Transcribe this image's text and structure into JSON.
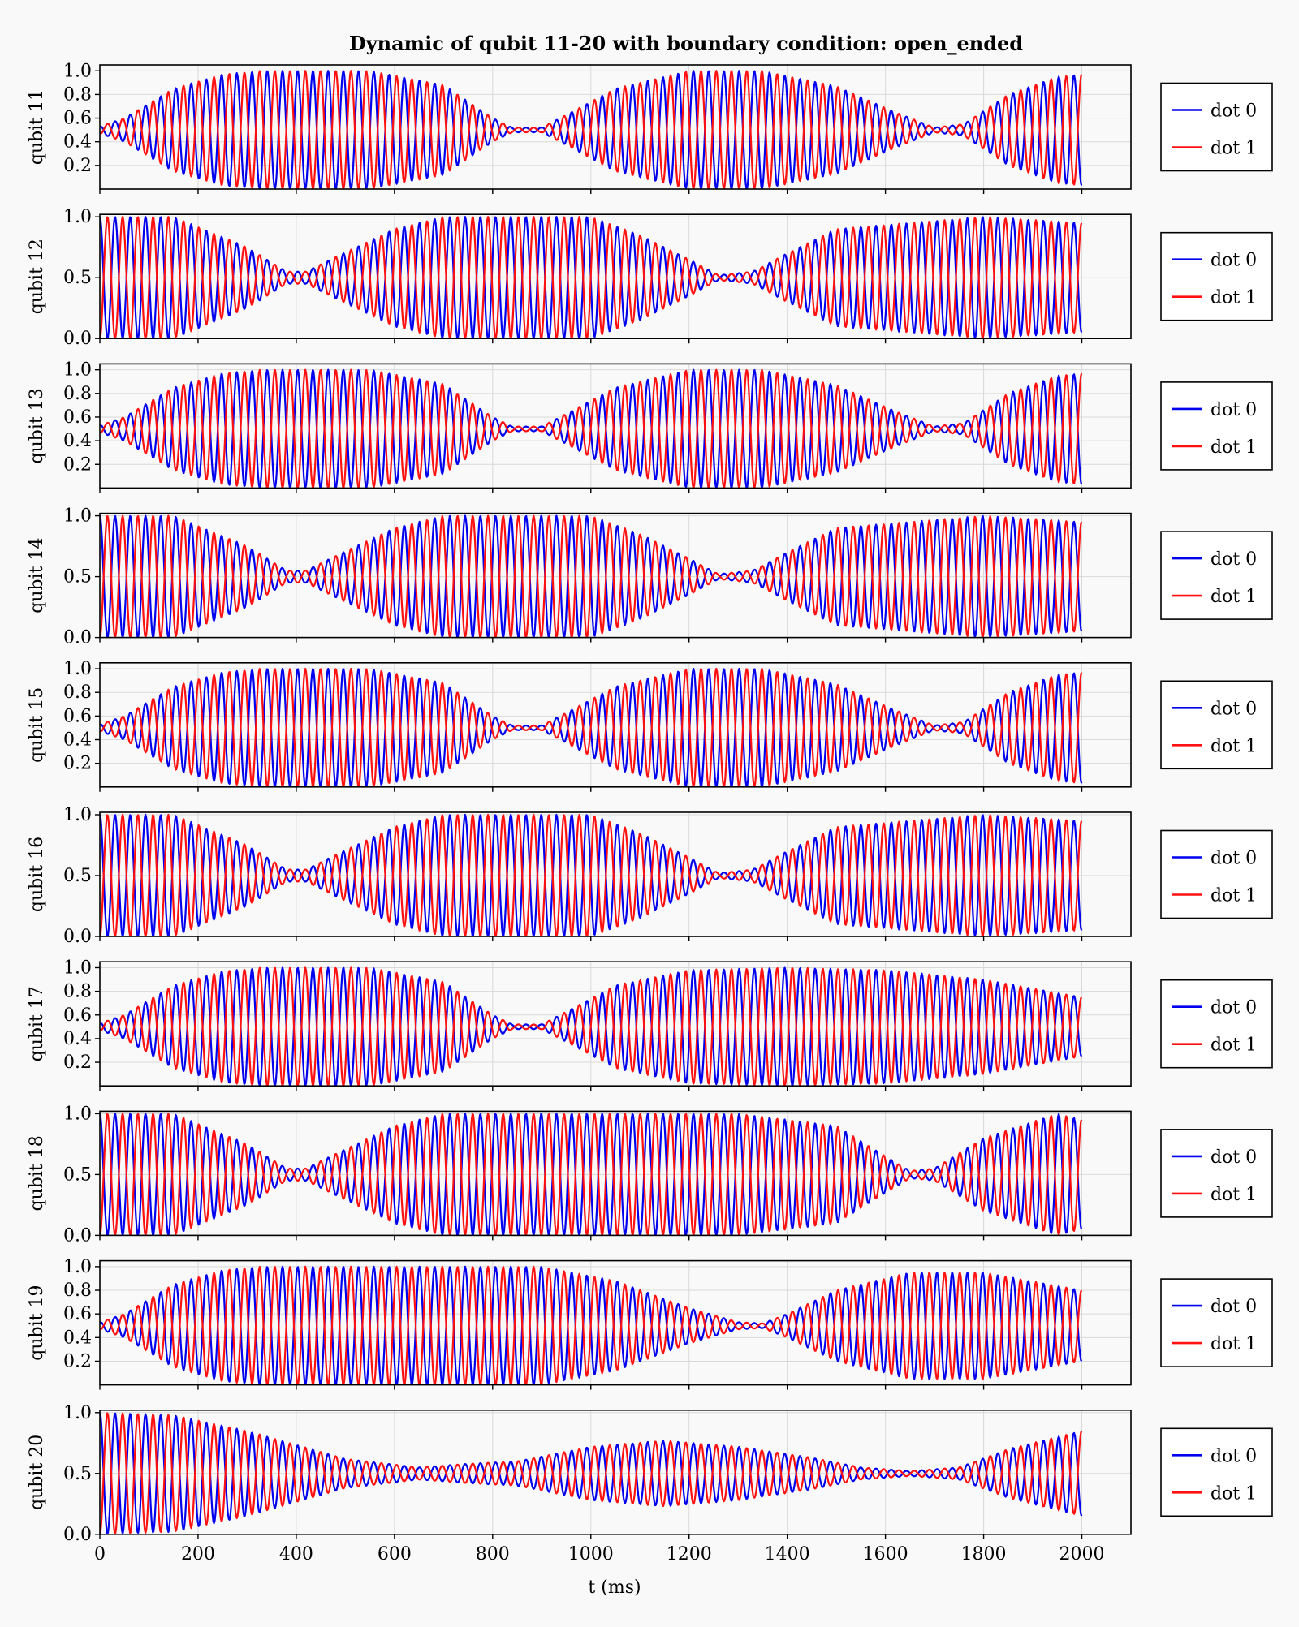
{
  "chart_data": {
    "type": "line",
    "title": "Dynamic of qubit 11-20 with boundary condition: open_ended",
    "xlabel": "t (ms)",
    "xlim": [
      0,
      2100
    ],
    "xticks": [
      0,
      200,
      400,
      600,
      800,
      1000,
      1200,
      1400,
      1600,
      1800,
      2000
    ],
    "grid": true,
    "legend_placement": "right, outside each panel",
    "oscillation_period_ms": 31,
    "series_styles": [
      {
        "name": "dot 0",
        "color": "#0000ee"
      },
      {
        "name": "dot 1",
        "color": "#ff1111"
      }
    ],
    "panels": [
      {
        "ylabel": "qubit 11",
        "ylim": [
          0.0,
          1.05
        ],
        "yticks": [
          "0.2",
          "0.4",
          "0.6",
          "0.8",
          "1.0"
        ],
        "legend": [
          "dot 0",
          "dot 1"
        ],
        "envelope": {
          "t": [
            0,
            50,
            150,
            250,
            330,
            550,
            700,
            800,
            840,
            900,
            960,
            1050,
            1200,
            1350,
            1500,
            1620,
            1700,
            1760,
            1850,
            1950,
            2000
          ],
          "amp": [
            0.03,
            0.1,
            0.35,
            0.47,
            0.5,
            0.5,
            0.38,
            0.1,
            0.02,
            0.02,
            0.15,
            0.35,
            0.5,
            0.5,
            0.37,
            0.15,
            0.02,
            0.05,
            0.3,
            0.45,
            0.47
          ]
        }
      },
      {
        "ylabel": "qubit 12",
        "ylim": [
          0.0,
          1.02
        ],
        "yticks": [
          "0.0",
          "0.5",
          "1.0"
        ],
        "legend": [
          "dot 0",
          "dot 1"
        ],
        "envelope": {
          "t": [
            0,
            150,
            300,
            380,
            420,
            470,
            600,
            700,
            1000,
            1100,
            1200,
            1260,
            1330,
            1400,
            1500,
            1800,
            2000
          ],
          "amp": [
            0.5,
            0.5,
            0.25,
            0.05,
            0.05,
            0.15,
            0.4,
            0.5,
            0.5,
            0.35,
            0.15,
            0.02,
            0.05,
            0.2,
            0.4,
            0.5,
            0.45
          ]
        }
      },
      {
        "ylabel": "qubit 13",
        "ylim": [
          0.0,
          1.05
        ],
        "yticks": [
          "0.2",
          "0.4",
          "0.6",
          "0.8",
          "1.0"
        ],
        "legend": [
          "dot 0",
          "dot 1"
        ],
        "envelope": {
          "t": [
            0,
            50,
            150,
            250,
            330,
            550,
            700,
            800,
            840,
            900,
            960,
            1050,
            1200,
            1350,
            1500,
            1620,
            1700,
            1760,
            1850,
            1950,
            2000
          ],
          "amp": [
            0.03,
            0.1,
            0.35,
            0.47,
            0.5,
            0.5,
            0.38,
            0.1,
            0.02,
            0.02,
            0.15,
            0.35,
            0.5,
            0.5,
            0.37,
            0.15,
            0.02,
            0.05,
            0.3,
            0.45,
            0.47
          ]
        }
      },
      {
        "ylabel": "qubit 14",
        "ylim": [
          0.0,
          1.02
        ],
        "yticks": [
          "0.0",
          "0.5",
          "1.0"
        ],
        "legend": [
          "dot 0",
          "dot 1"
        ],
        "envelope": {
          "t": [
            0,
            150,
            300,
            380,
            420,
            470,
            600,
            700,
            1000,
            1100,
            1200,
            1260,
            1330,
            1400,
            1500,
            1800,
            2000
          ],
          "amp": [
            0.5,
            0.5,
            0.25,
            0.05,
            0.05,
            0.15,
            0.4,
            0.5,
            0.5,
            0.35,
            0.15,
            0.02,
            0.05,
            0.2,
            0.4,
            0.5,
            0.45
          ]
        }
      },
      {
        "ylabel": "qubit 15",
        "ylim": [
          0.0,
          1.05
        ],
        "yticks": [
          "0.2",
          "0.4",
          "0.6",
          "0.8",
          "1.0"
        ],
        "legend": [
          "dot 0",
          "dot 1"
        ],
        "envelope": {
          "t": [
            0,
            50,
            150,
            250,
            330,
            550,
            700,
            800,
            840,
            900,
            960,
            1050,
            1200,
            1350,
            1500,
            1620,
            1700,
            1760,
            1850,
            1950,
            2000
          ],
          "amp": [
            0.03,
            0.1,
            0.35,
            0.47,
            0.5,
            0.5,
            0.38,
            0.1,
            0.02,
            0.02,
            0.15,
            0.35,
            0.5,
            0.5,
            0.37,
            0.15,
            0.02,
            0.05,
            0.3,
            0.45,
            0.47
          ]
        }
      },
      {
        "ylabel": "qubit 16",
        "ylim": [
          0.0,
          1.02
        ],
        "yticks": [
          "0.0",
          "0.5",
          "1.0"
        ],
        "legend": [
          "dot 0",
          "dot 1"
        ],
        "envelope": {
          "t": [
            0,
            150,
            300,
            380,
            420,
            470,
            600,
            700,
            1000,
            1100,
            1200,
            1260,
            1330,
            1400,
            1500,
            1800,
            2000
          ],
          "amp": [
            0.5,
            0.5,
            0.25,
            0.05,
            0.05,
            0.15,
            0.4,
            0.5,
            0.5,
            0.35,
            0.15,
            0.02,
            0.05,
            0.2,
            0.4,
            0.5,
            0.45
          ]
        }
      },
      {
        "ylabel": "qubit 17",
        "ylim": [
          0.0,
          1.05
        ],
        "yticks": [
          "0.2",
          "0.4",
          "0.6",
          "0.8",
          "1.0"
        ],
        "legend": [
          "dot 0",
          "dot 1"
        ],
        "envelope": {
          "t": [
            0,
            50,
            150,
            250,
            330,
            550,
            700,
            800,
            840,
            900,
            960,
            1050,
            1200,
            1400,
            1600,
            1800,
            2000
          ],
          "amp": [
            0.03,
            0.1,
            0.35,
            0.47,
            0.5,
            0.5,
            0.38,
            0.1,
            0.02,
            0.02,
            0.15,
            0.35,
            0.48,
            0.5,
            0.48,
            0.4,
            0.25
          ]
        }
      },
      {
        "ylabel": "qubit 18",
        "ylim": [
          0.0,
          1.02
        ],
        "yticks": [
          "0.0",
          "0.5",
          "1.0"
        ],
        "legend": [
          "dot 0",
          "dot 1"
        ],
        "envelope": {
          "t": [
            0,
            150,
            300,
            380,
            420,
            470,
            600,
            700,
            1000,
            1300,
            1500,
            1600,
            1650,
            1700,
            1800,
            1950,
            2000
          ],
          "amp": [
            0.5,
            0.5,
            0.25,
            0.05,
            0.05,
            0.15,
            0.4,
            0.5,
            0.5,
            0.5,
            0.4,
            0.15,
            0.03,
            0.05,
            0.3,
            0.5,
            0.45
          ]
        }
      },
      {
        "ylabel": "qubit 19",
        "ylim": [
          0.0,
          1.05
        ],
        "yticks": [
          "0.2",
          "0.4",
          "0.6",
          "0.8",
          "1.0"
        ],
        "legend": [
          "dot 0",
          "dot 1"
        ],
        "envelope": {
          "t": [
            0,
            50,
            150,
            250,
            330,
            600,
            900,
            1050,
            1200,
            1300,
            1350,
            1400,
            1500,
            1650,
            1800,
            2000
          ],
          "amp": [
            0.03,
            0.1,
            0.35,
            0.47,
            0.5,
            0.5,
            0.5,
            0.38,
            0.15,
            0.03,
            0.02,
            0.1,
            0.3,
            0.45,
            0.45,
            0.3
          ]
        }
      },
      {
        "ylabel": "qubit 20",
        "ylim": [
          0.0,
          1.02
        ],
        "yticks": [
          "0.0",
          "0.5",
          "1.0"
        ],
        "legend": [
          "dot 0",
          "dot 1"
        ],
        "envelope": {
          "t": [
            0,
            150,
            300,
            500,
            650,
            750,
            850,
            1000,
            1150,
            1300,
            1450,
            1550,
            1650,
            1750,
            1850,
            2000
          ],
          "amp": [
            0.5,
            0.48,
            0.35,
            0.12,
            0.05,
            0.08,
            0.1,
            0.22,
            0.27,
            0.22,
            0.13,
            0.05,
            0.02,
            0.05,
            0.2,
            0.35
          ]
        }
      }
    ]
  }
}
